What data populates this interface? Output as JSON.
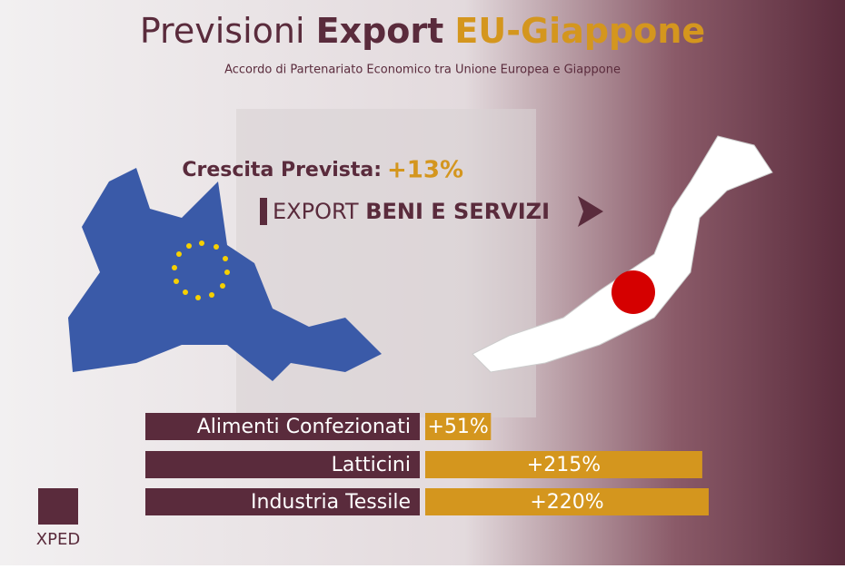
{
  "header": {
    "title": [
      "Previsioni",
      "Export",
      "EU-Giappone"
    ],
    "subtitle": "Accordo di Partenariato Economico tra Unione Europea e Giappone"
  },
  "growth": {
    "label": "Crescita Prevista:",
    "value_label": "+13%"
  },
  "flow": {
    "light": "EXPORT",
    "bold": "BENI E SERVIZI"
  },
  "chart_data": {
    "type": "bar",
    "orientation": "horizontal",
    "categories": [
      "Alimenti Confezionati",
      "Latticini",
      "Industria Tessile"
    ],
    "values": [
      51,
      215,
      220
    ],
    "value_labels": [
      "+51%",
      "+215%",
      "+220%"
    ],
    "color": "#d4961e",
    "label_color": "#5a2b3c"
  },
  "logo": "XPED"
}
